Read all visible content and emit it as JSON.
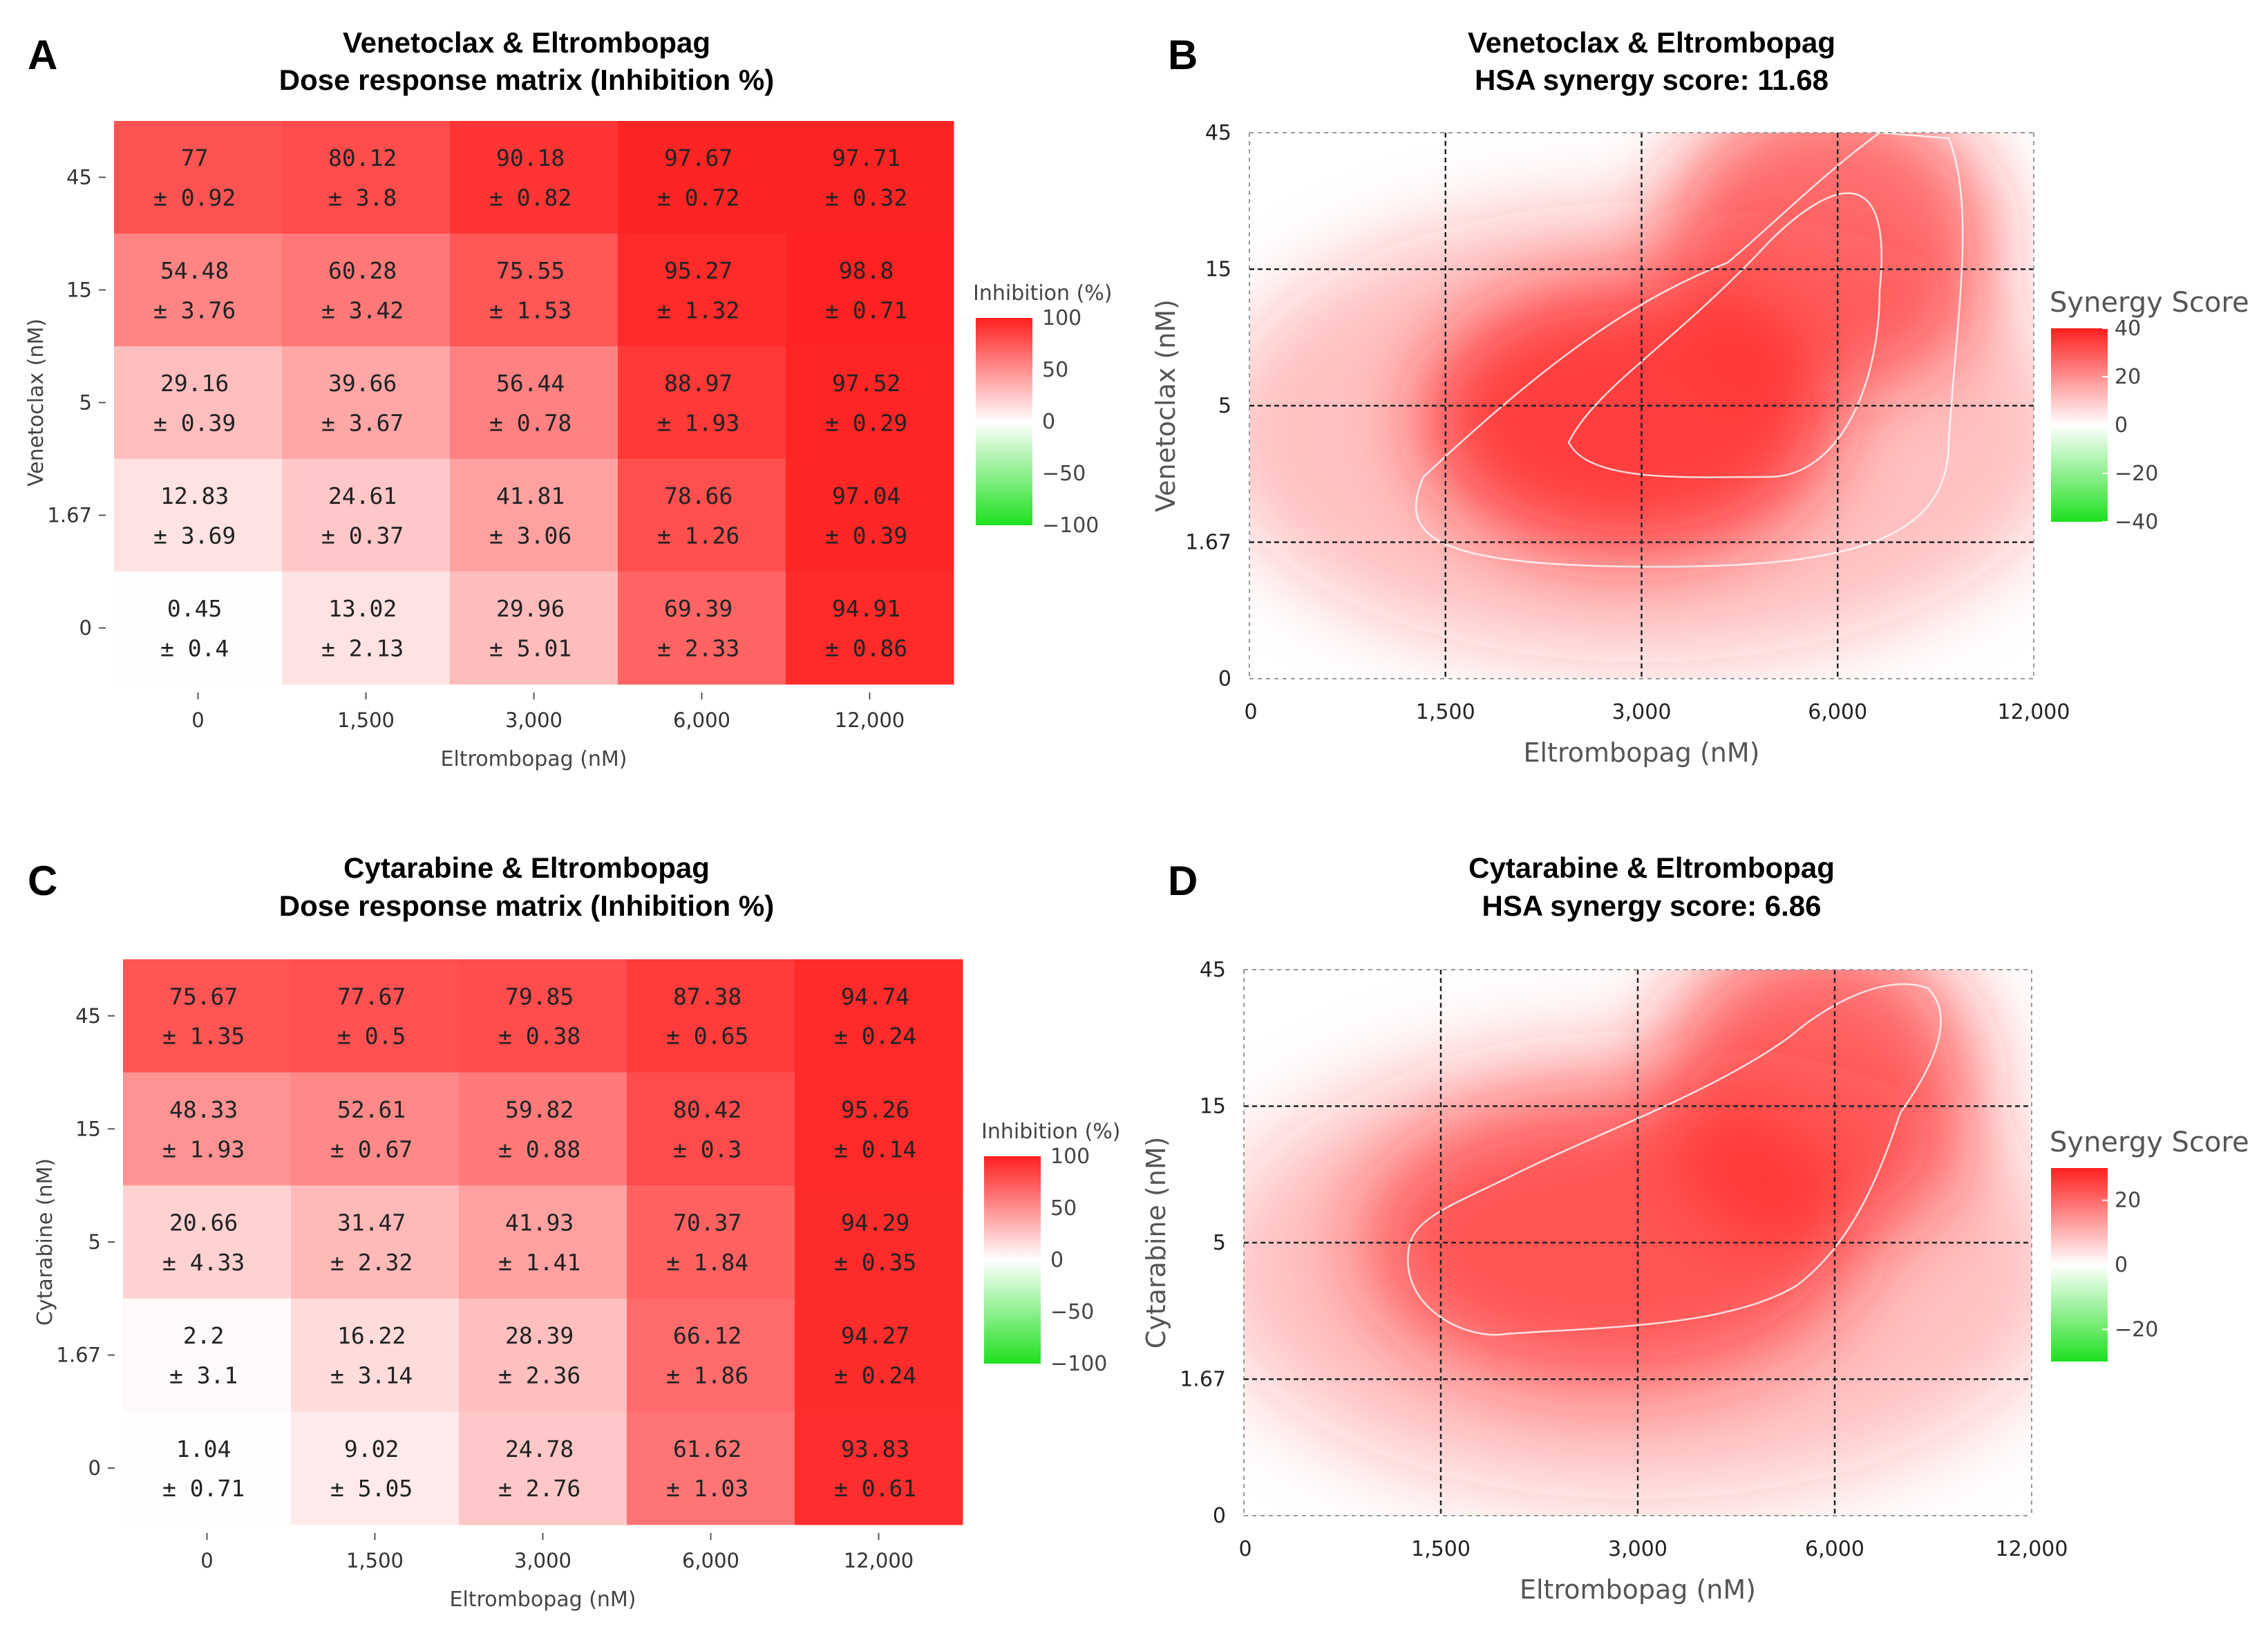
{
  "colors": {
    "positive": "#ff1f1f",
    "neutral": "#ffffff",
    "negative": "#1fe01f",
    "grid": "#222222",
    "contour": "#ffffff"
  },
  "chart_data": [
    {
      "panel": "A",
      "type": "heatmap",
      "title_line1": "Venetoclax & Eltrombopag",
      "title_line2": "Dose response matrix (Inhibition %)",
      "xlabel": "Eltrombopag (nM)",
      "ylabel": "Venetoclax (nM)",
      "x_ticks": [
        "0",
        "1,500",
        "3,000",
        "6,000",
        "12,000"
      ],
      "y_ticks": [
        "45",
        "15",
        "5",
        "1.67",
        "0"
      ],
      "values": [
        [
          "77",
          "80.12",
          "90.18",
          "97.67",
          "97.71"
        ],
        [
          "54.48",
          "60.28",
          "75.55",
          "95.27",
          "98.8"
        ],
        [
          "29.16",
          "39.66",
          "56.44",
          "88.97",
          "97.52"
        ],
        [
          "12.83",
          "24.61",
          "41.81",
          "78.66",
          "97.04"
        ],
        [
          "0.45",
          "13.02",
          "29.96",
          "69.39",
          "94.91"
        ]
      ],
      "errors": [
        [
          "0.92",
          "3.8",
          "0.82",
          "0.72",
          "0.32"
        ],
        [
          "3.76",
          "3.42",
          "1.53",
          "1.32",
          "0.71"
        ],
        [
          "0.39",
          "3.67",
          "0.78",
          "1.93",
          "0.29"
        ],
        [
          "3.69",
          "0.37",
          "3.06",
          "1.26",
          "0.39"
        ],
        [
          "0.4",
          "2.13",
          "5.01",
          "2.33",
          "0.86"
        ]
      ],
      "legend": {
        "title": "Inhibition (%)",
        "ticks": [
          "100",
          "50",
          "0",
          "−50",
          "−100"
        ],
        "range": [
          -100,
          100
        ]
      }
    },
    {
      "panel": "B",
      "type": "heatmap",
      "title_line1": "Venetoclax & Eltrombopag",
      "title_line2": "HSA synergy score: 11.68",
      "xlabel": "Eltrombopag (nM)",
      "ylabel": "Venetoclax (nM)",
      "x_ticks": [
        "0",
        "1,500",
        "3,000",
        "6,000",
        "12,000"
      ],
      "y_ticks": [
        "45",
        "15",
        "5",
        "1.67",
        "0"
      ],
      "legend": {
        "title": "Synergy Score",
        "ticks": [
          "40",
          "20",
          "0",
          "−20",
          "−40"
        ],
        "range": [
          -40,
          40
        ]
      },
      "surface_peaks": [
        {
          "x": "3,000",
          "y": "5",
          "score": 38
        },
        {
          "x": "6,000",
          "y": "15",
          "score": 30
        }
      ]
    },
    {
      "panel": "C",
      "type": "heatmap",
      "title_line1": "Cytarabine & Eltrombopag",
      "title_line2": "Dose response matrix (Inhibition %)",
      "xlabel": "Eltrombopag (nM)",
      "ylabel": "Cytarabine (nM)",
      "x_ticks": [
        "0",
        "1,500",
        "3,000",
        "6,000",
        "12,000"
      ],
      "y_ticks": [
        "45",
        "15",
        "5",
        "1.67",
        "0"
      ],
      "values": [
        [
          "75.67",
          "77.67",
          "79.85",
          "87.38",
          "94.74"
        ],
        [
          "48.33",
          "52.61",
          "59.82",
          "80.42",
          "95.26"
        ],
        [
          "20.66",
          "31.47",
          "41.93",
          "70.37",
          "94.29"
        ],
        [
          "2.2",
          "16.22",
          "28.39",
          "66.12",
          "94.27"
        ],
        [
          "1.04",
          "9.02",
          "24.78",
          "61.62",
          "93.83"
        ]
      ],
      "errors": [
        [
          "1.35",
          "0.5",
          "0.38",
          "0.65",
          "0.24"
        ],
        [
          "1.93",
          "0.67",
          "0.88",
          "0.3",
          "0.14"
        ],
        [
          "4.33",
          "2.32",
          "1.41",
          "1.84",
          "0.35"
        ],
        [
          "3.1",
          "3.14",
          "2.36",
          "1.86",
          "0.24"
        ],
        [
          "0.71",
          "5.05",
          "2.76",
          "1.03",
          "0.61"
        ]
      ],
      "legend": {
        "title": "Inhibition (%)",
        "ticks": [
          "100",
          "50",
          "0",
          "−50",
          "−100"
        ],
        "range": [
          -100,
          100
        ]
      }
    },
    {
      "panel": "D",
      "type": "heatmap",
      "title_line1": "Cytarabine & Eltrombopag",
      "title_line2": "HSA synergy score: 6.86",
      "xlabel": "Eltrombopag (nM)",
      "ylabel": "Cytarabine (nM)",
      "x_ticks": [
        "0",
        "1,500",
        "3,000",
        "6,000",
        "12,000"
      ],
      "y_ticks": [
        "45",
        "15",
        "5",
        "1.67",
        "0"
      ],
      "legend": {
        "title": "Synergy Score",
        "ticks": [
          "20",
          "0",
          "−20"
        ],
        "range": [
          -30,
          30
        ]
      },
      "surface_peaks": [
        {
          "x": "3,000",
          "y": "5",
          "score": 24
        },
        {
          "x": "6,000",
          "y": "15",
          "score": 24
        }
      ]
    }
  ]
}
